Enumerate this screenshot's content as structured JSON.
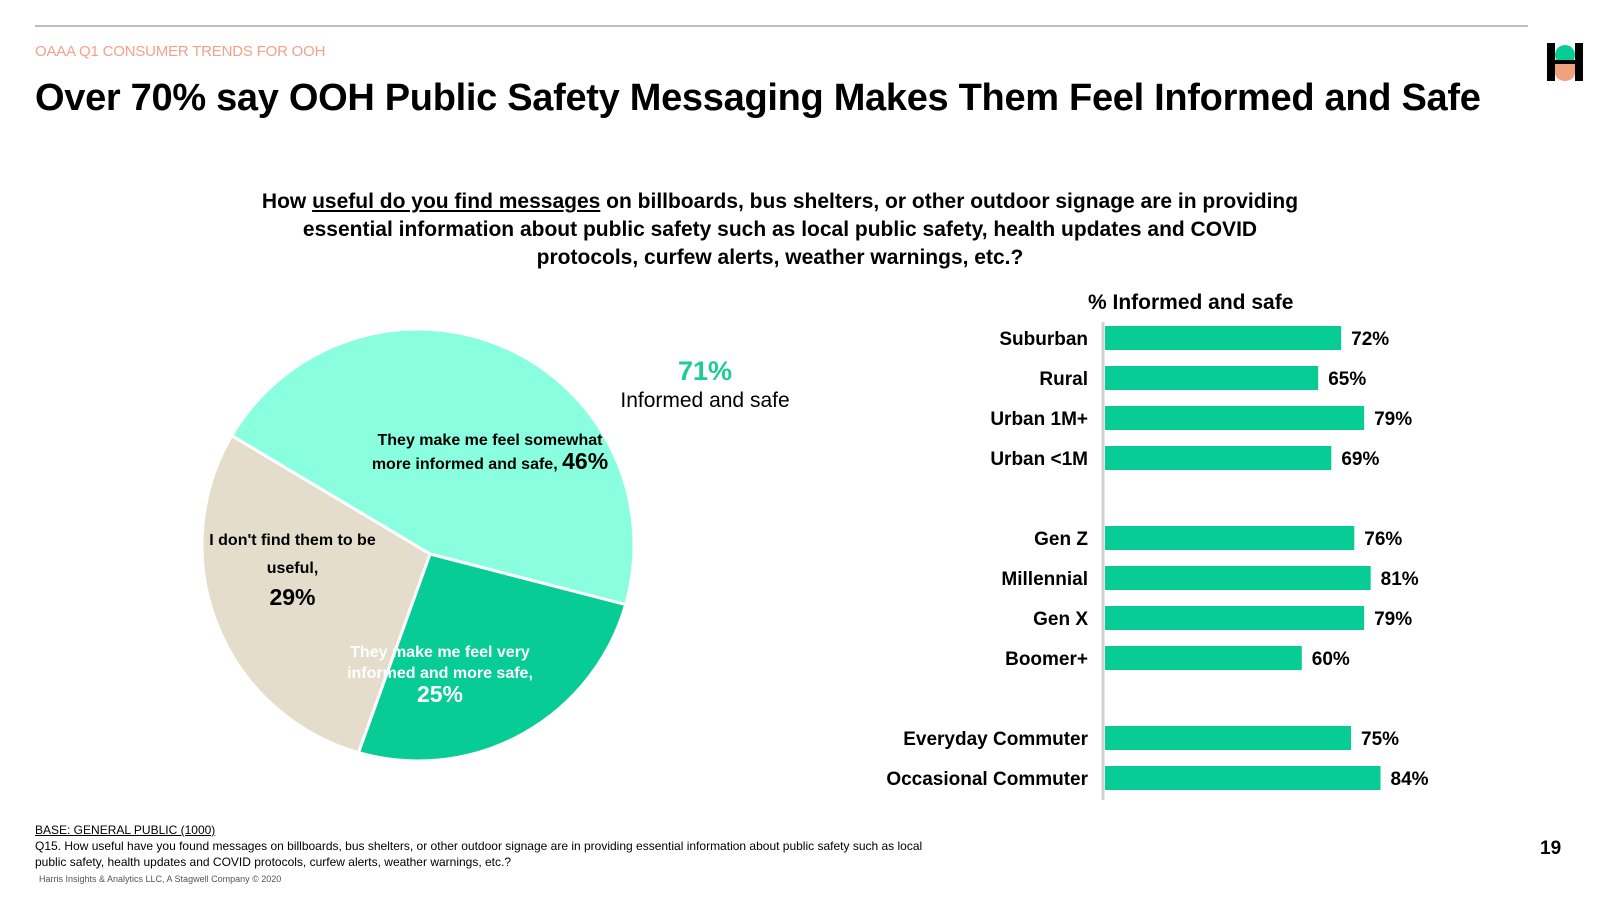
{
  "header": {
    "kicker": "OAAA Q1 CONSUMER TRENDS FOR OOH",
    "title": "Over 70% say OOH Public Safety Messaging Makes Them Feel Informed and Safe",
    "logo": "harris-logo-icon"
  },
  "question": {
    "before": "How ",
    "underlined": "useful do you find messages",
    "after": " on billboards, bus shelters, or other outdoor signage are in providing essential information about public safety such as local public safety, health updates and COVID protocols, curfew alerts, weather warnings, etc.?"
  },
  "callout": {
    "value": "71%",
    "label": "Informed and safe"
  },
  "colors": {
    "light_green": "#8affe0",
    "dark_green": "#07cc96",
    "beige": "#e4ddcc",
    "bar": "#07cc96",
    "kicker": "#f4a08a"
  },
  "chart_data": [
    {
      "type": "pie",
      "slices": [
        {
          "label": "They make me feel somewhat more informed and safe,",
          "value": 46,
          "display": "46%"
        },
        {
          "label": "They make me feel very informed and more safe,",
          "value": 25,
          "display": "25%"
        },
        {
          "label": "I don't find them to be useful,",
          "value": 29,
          "display": "29%"
        }
      ]
    },
    {
      "type": "bar",
      "orientation": "horizontal",
      "title": "%  Informed and safe",
      "xlim": [
        0,
        100
      ],
      "groups": [
        {
          "categories": [
            "Suburban",
            "Rural",
            "Urban 1M+",
            "Urban <1M"
          ],
          "values": [
            72,
            65,
            79,
            69
          ]
        },
        {
          "categories": [
            "Gen Z",
            "Millennial",
            "Gen X",
            "Boomer+"
          ],
          "values": [
            76,
            81,
            79,
            60
          ]
        },
        {
          "categories": [
            "Everyday Commuter",
            "Occasional Commuter"
          ],
          "values": [
            75,
            84
          ]
        }
      ]
    }
  ],
  "footer": {
    "base": "BASE: GENERAL PUBLIC (1000)",
    "note": "Q15. How useful have you found messages on billboards, bus shelters, or other outdoor signage are in providing essential information about public safety such as local public safety, health updates and COVID protocols, curfew alerts, weather warnings, etc.?",
    "copyright": "Harris Insights & Analytics LLC, A Stagwell Company © 2020",
    "page": "19"
  }
}
